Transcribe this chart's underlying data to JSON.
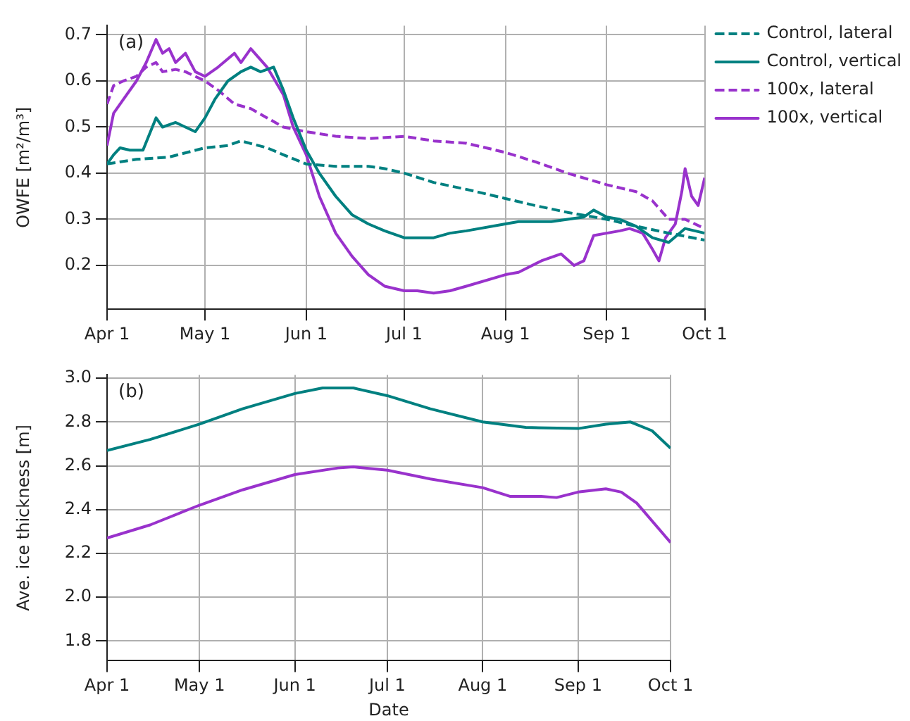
{
  "chart_data": [
    {
      "type": "line",
      "ylabel": "OWFE [m²/m³]",
      "annotations": [
        "(a)"
      ],
      "xlim": [
        "--04-01",
        "--10-01"
      ],
      "xticks": [
        {
          "value": "--04-01",
          "label": "Apr 1"
        },
        {
          "value": "--05-01",
          "label": "May 1"
        },
        {
          "value": "--06-01",
          "label": "Jun 1"
        },
        {
          "value": "--07-01",
          "label": "Jul 1"
        },
        {
          "value": "--08-01",
          "label": "Aug 1"
        },
        {
          "value": "--09-01",
          "label": "Sep 1"
        },
        {
          "value": "--10-01",
          "label": "Oct 1"
        }
      ],
      "ylim": [
        0.105,
        0.72
      ],
      "yticks": [
        0.2,
        0.3,
        0.4,
        0.5,
        0.6,
        0.7
      ],
      "grid": true,
      "legend": "top right",
      "series": [
        {
          "name": "Control, lateral",
          "color": "#008080",
          "line_style": "dashed",
          "x": [
            "--04-01",
            "--04-10",
            "--04-20",
            "--05-01",
            "--05-08",
            "--05-12",
            "--05-20",
            "--05-25",
            "--06-01",
            "--06-10",
            "--06-20",
            "--06-25",
            "--07-01",
            "--07-10",
            "--07-20",
            "--08-01",
            "--08-10",
            "--08-20",
            "--09-01",
            "--09-10",
            "--09-20",
            "--10-01"
          ],
          "values": [
            0.42,
            0.43,
            0.435,
            0.455,
            0.46,
            0.47,
            0.455,
            0.44,
            0.42,
            0.415,
            0.415,
            0.41,
            0.4,
            0.38,
            0.365,
            0.345,
            0.33,
            0.315,
            0.3,
            0.285,
            0.27,
            0.255
          ]
        },
        {
          "name": "Control, vertical",
          "color": "#008080",
          "line_style": "solid",
          "x": [
            "--04-01",
            "--04-03",
            "--04-05",
            "--04-08",
            "--04-12",
            "--04-16",
            "--04-18",
            "--04-22",
            "--04-25",
            "--04-28",
            "--05-01",
            "--05-04",
            "--05-08",
            "--05-12",
            "--05-15",
            "--05-18",
            "--05-22",
            "--05-25",
            "--05-28",
            "--06-01",
            "--06-05",
            "--06-10",
            "--06-15",
            "--06-20",
            "--06-25",
            "--07-01",
            "--07-05",
            "--07-10",
            "--07-15",
            "--07-20",
            "--08-01",
            "--08-05",
            "--08-15",
            "--08-25",
            "--08-28",
            "--09-01",
            "--09-05",
            "--09-10",
            "--09-15",
            "--09-20",
            "--09-25",
            "--09-28",
            "--10-01"
          ],
          "values": [
            0.42,
            0.44,
            0.455,
            0.45,
            0.45,
            0.52,
            0.5,
            0.51,
            0.5,
            0.49,
            0.52,
            0.56,
            0.6,
            0.62,
            0.63,
            0.62,
            0.63,
            0.58,
            0.52,
            0.45,
            0.4,
            0.35,
            0.31,
            0.29,
            0.275,
            0.26,
            0.26,
            0.26,
            0.27,
            0.275,
            0.29,
            0.295,
            0.295,
            0.305,
            0.32,
            0.305,
            0.3,
            0.285,
            0.26,
            0.25,
            0.28,
            0.275,
            0.27
          ]
        },
        {
          "name": "100x, lateral",
          "color": "#9932cc",
          "line_style": "dashed",
          "x": [
            "--04-01",
            "--04-03",
            "--04-06",
            "--04-10",
            "--04-13",
            "--04-16",
            "--04-18",
            "--04-22",
            "--04-25",
            "--05-01",
            "--05-05",
            "--05-10",
            "--05-15",
            "--05-20",
            "--05-25",
            "--06-01",
            "--06-10",
            "--06-20",
            "--07-01",
            "--07-10",
            "--07-20",
            "--08-01",
            "--08-10",
            "--08-20",
            "--09-01",
            "--09-10",
            "--09-15",
            "--09-20",
            "--09-25",
            "--10-01"
          ],
          "values": [
            0.55,
            0.59,
            0.6,
            0.61,
            0.63,
            0.64,
            0.62,
            0.625,
            0.62,
            0.6,
            0.58,
            0.55,
            0.54,
            0.52,
            0.5,
            0.49,
            0.48,
            0.475,
            0.48,
            0.47,
            0.465,
            0.445,
            0.425,
            0.4,
            0.375,
            0.36,
            0.34,
            0.3,
            0.3,
            0.28
          ]
        },
        {
          "name": "100x, vertical",
          "color": "#9932cc",
          "line_style": "solid",
          "x": [
            "--04-01",
            "--04-03",
            "--04-06",
            "--04-10",
            "--04-13",
            "--04-16",
            "--04-18",
            "--04-20",
            "--04-22",
            "--04-25",
            "--04-28",
            "--05-01",
            "--05-05",
            "--05-10",
            "--05-12",
            "--05-15",
            "--05-20",
            "--05-25",
            "--05-28",
            "--06-01",
            "--06-05",
            "--06-10",
            "--06-15",
            "--06-20",
            "--06-25",
            "--07-01",
            "--07-05",
            "--07-10",
            "--07-15",
            "--07-20",
            "--08-01",
            "--08-05",
            "--08-12",
            "--08-18",
            "--08-22",
            "--08-25",
            "--08-28",
            "--09-01",
            "--09-05",
            "--09-08",
            "--09-12",
            "--09-15",
            "--09-17",
            "--09-19",
            "--09-22",
            "--09-24",
            "--09-25",
            "--09-27",
            "--09-29",
            "--10-01"
          ],
          "values": [
            0.46,
            0.53,
            0.56,
            0.6,
            0.64,
            0.69,
            0.66,
            0.67,
            0.64,
            0.66,
            0.62,
            0.61,
            0.63,
            0.66,
            0.64,
            0.67,
            0.63,
            0.57,
            0.5,
            0.44,
            0.35,
            0.27,
            0.22,
            0.18,
            0.155,
            0.145,
            0.145,
            0.14,
            0.145,
            0.155,
            0.18,
            0.185,
            0.21,
            0.225,
            0.2,
            0.21,
            0.265,
            0.27,
            0.275,
            0.28,
            0.27,
            0.235,
            0.21,
            0.26,
            0.29,
            0.36,
            0.41,
            0.35,
            0.33,
            0.39
          ]
        }
      ]
    },
    {
      "type": "line",
      "xlabel": "Date",
      "ylabel": "Ave. ice thickness [m]",
      "annotations": [
        "(b)"
      ],
      "xlim": [
        "--04-01",
        "--10-01"
      ],
      "xticks": [
        {
          "value": "--04-01",
          "label": "Apr 1"
        },
        {
          "value": "--05-01",
          "label": "May 1"
        },
        {
          "value": "--06-01",
          "label": "Jun 1"
        },
        {
          "value": "--07-01",
          "label": "Jul 1"
        },
        {
          "value": "--08-01",
          "label": "Aug 1"
        },
        {
          "value": "--09-01",
          "label": "Sep 1"
        },
        {
          "value": "--10-01",
          "label": "Oct 1"
        }
      ],
      "ylim": [
        1.71,
        3.015
      ],
      "yticks": [
        {
          "value": 1.8,
          "label": "1.8"
        },
        {
          "value": 2,
          "label": "2.0"
        },
        {
          "value": 2.2,
          "label": "2.2"
        },
        {
          "value": 2.4,
          "label": "2.4"
        },
        {
          "value": 2.6,
          "label": "2.6"
        },
        {
          "value": 2.8,
          "label": "2.8"
        },
        {
          "value": 3,
          "label": "3.0"
        }
      ],
      "grid": true,
      "series": [
        {
          "color": "#008080",
          "line_style": "solid",
          "x": [
            "--04-01",
            "--04-15",
            "--05-01",
            "--05-15",
            "--06-01",
            "--06-10",
            "--06-20",
            "--07-01",
            "--07-15",
            "--08-01",
            "--08-15",
            "--09-01",
            "--09-10",
            "--09-18",
            "--09-25",
            "--10-01"
          ],
          "values": [
            2.67,
            2.72,
            2.79,
            2.86,
            2.93,
            2.955,
            2.955,
            2.92,
            2.86,
            2.8,
            2.775,
            2.77,
            2.79,
            2.8,
            2.76,
            2.68
          ]
        },
        {
          "color": "#9932cc",
          "line_style": "solid",
          "x": [
            "--04-01",
            "--04-15",
            "--05-01",
            "--05-15",
            "--06-01",
            "--06-15",
            "--06-20",
            "--07-01",
            "--07-15",
            "--08-01",
            "--08-10",
            "--08-20",
            "--08-25",
            "--09-01",
            "--09-10",
            "--09-15",
            "--09-20",
            "--10-01"
          ],
          "values": [
            2.27,
            2.33,
            2.42,
            2.49,
            2.56,
            2.59,
            2.595,
            2.58,
            2.54,
            2.5,
            2.46,
            2.46,
            2.455,
            2.48,
            2.495,
            2.48,
            2.43,
            2.25
          ]
        }
      ]
    }
  ]
}
